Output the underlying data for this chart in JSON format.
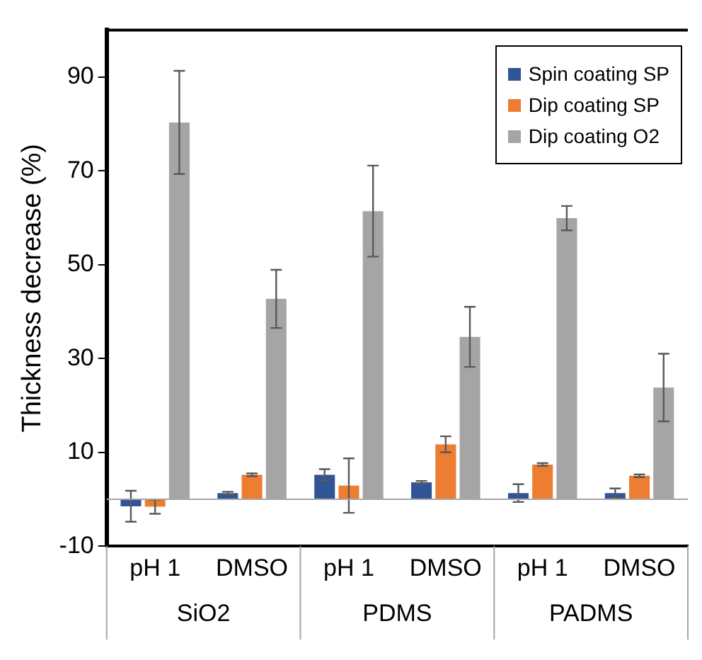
{
  "chart_data": {
    "type": "bar",
    "ylabel": "Thickness decrease (%)",
    "categories": [
      "pH 1",
      "DMSO",
      "pH 1",
      "DMSO",
      "pH 1",
      "DMSO"
    ],
    "series": [
      {
        "name": "Spin coating SP",
        "color": "#2f5597",
        "values": [
          -1.5,
          1.3,
          5.2,
          3.6,
          1.3,
          1.3
        ],
        "errors": [
          3.3,
          0.3,
          1.2,
          0.3,
          1.9,
          1
        ]
      },
      {
        "name": "Dip coating SP",
        "color": "#ed7d31",
        "values": [
          -1.6,
          5.2,
          2.9,
          11.7,
          7.4,
          5
        ],
        "errors": [
          1.5,
          0.3,
          5.8,
          1.7,
          0.3,
          0.3
        ]
      },
      {
        "name": "Dip coating O2",
        "color": "#a5a5a5",
        "values": [
          80.3,
          42.7,
          61.4,
          34.6,
          59.9,
          23.8
        ],
        "errors": [
          11,
          6.2,
          9.7,
          6.4,
          2.6,
          7.2
        ]
      }
    ],
    "annotations": [
      "SiO2",
      "PDMS",
      "PADMS"
    ],
    "ylim": [
      -10,
      100
    ],
    "yticks": [
      -10,
      10,
      30,
      50,
      70,
      90
    ],
    "grid": false,
    "legend": "top right"
  }
}
